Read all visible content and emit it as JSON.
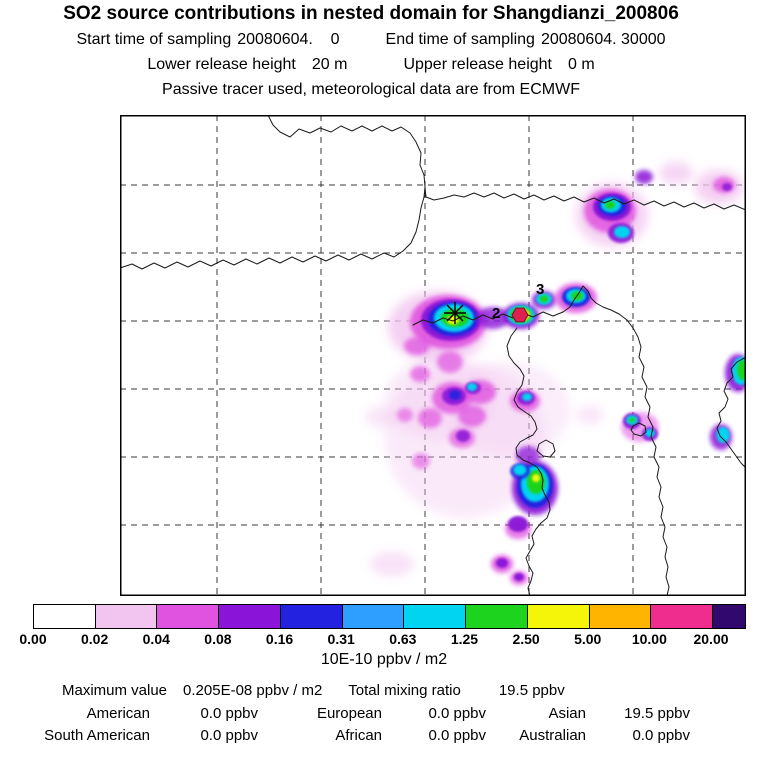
{
  "chart_data": {
    "type": "heatmap",
    "title": "SO2 source contributions in nested domain for Shangdianzi_200806",
    "sampling": {
      "start_label": "Start time of sampling",
      "start_value": "20080604.    0",
      "end_label": "End time of sampling",
      "end_value": "20080604. 30000"
    },
    "release": {
      "lower_label": "Lower release height",
      "lower_value": "20 m",
      "upper_label": "Upper release height",
      "upper_value": "0 m"
    },
    "tracer_note": "Passive tracer used, meteorological data are from ECMWF",
    "grid": "dashed",
    "colorbar": {
      "units": "10E-10 ppbv / m2",
      "tick_labels": [
        "0.00",
        "0.02",
        "0.04",
        "0.08",
        "0.16",
        "0.31",
        "0.63",
        "1.25",
        "2.50",
        "5.00",
        "10.00",
        "20.00"
      ],
      "segment_colors": [
        "#ffffff",
        "#f2c4f0",
        "#e052e0",
        "#8a14d8",
        "#2222e0",
        "#2f9fff",
        "#00d4f0",
        "#1dd31d",
        "#f5f50a",
        "#ffb400",
        "#ee2d8e",
        "#31086e"
      ],
      "over_range_color": "#31086e"
    },
    "markers": [
      {
        "label": "2"
      },
      {
        "label": "3"
      }
    ],
    "receptor": {
      "symbol": "asterisk"
    },
    "site_marker": {
      "shape": "hexagon",
      "color": "#e02050"
    },
    "stats": {
      "maximum_label": "Maximum value",
      "maximum_value": "0.205E-08 ppbv / m2",
      "total_label": "Total mixing ratio",
      "total_value": "19.5 ppbv",
      "regions": [
        {
          "label": "American",
          "value": "0.0 ppbv"
        },
        {
          "label": "European",
          "value": "0.0 ppbv"
        },
        {
          "label": "Asian",
          "value": "19.5 ppbv"
        },
        {
          "label": "South American",
          "value": "0.0 ppbv"
        },
        {
          "label": "African",
          "value": "0.0 ppbv"
        },
        {
          "label": "Australian",
          "value": "0.0 ppbv"
        }
      ]
    }
  }
}
